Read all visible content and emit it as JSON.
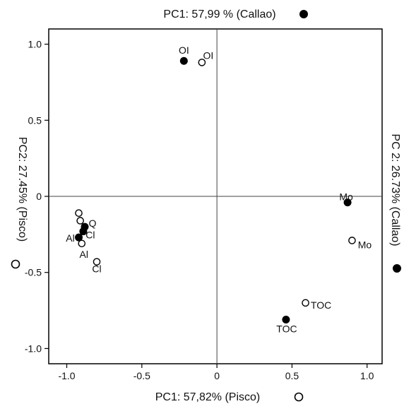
{
  "chart_data": {
    "type": "scatter",
    "title_top": "PC1: 57,99 % (Callao)",
    "xlabel_bottom": "PC1: 57,82% (Pisco)",
    "ylabel_left": "PC2: 27.45% (Pisco)",
    "ylabel_right": "PC 2: 26.73% (Callao)",
    "xlim": [
      -1.12,
      1.1
    ],
    "ylim": [
      -1.1,
      1.1
    ],
    "x_ticks": [
      -1.0,
      -0.5,
      0,
      0.5,
      1.0
    ],
    "x_tick_labels": [
      "-1.0",
      "-0.5",
      "0",
      "0.5",
      "1.0"
    ],
    "y_ticks": [
      1.0,
      0.5,
      0,
      -0.5,
      -1.0
    ],
    "y_tick_labels": [
      "1.0",
      "0.5",
      "0",
      "-0.5",
      "-1.0"
    ],
    "grid": false,
    "zero_lines": true,
    "series": [
      {
        "name": "Callao",
        "marker": "filled-circle",
        "points": [
          {
            "label": "OI",
            "x": -0.22,
            "y": 0.89
          },
          {
            "label": "Mo",
            "x": 0.87,
            "y": -0.04
          },
          {
            "label": "TOC",
            "x": 0.46,
            "y": -0.81
          },
          {
            "label": "Q",
            "x": -0.88,
            "y": -0.2
          },
          {
            "label": "Cl",
            "x": -0.89,
            "y": -0.23
          },
          {
            "label": "Al",
            "x": -0.92,
            "y": -0.27
          }
        ]
      },
      {
        "name": "Pisco",
        "marker": "open-circle",
        "points": [
          {
            "label": "OI",
            "x": -0.1,
            "y": 0.88
          },
          {
            "label": "Mo",
            "x": 0.9,
            "y": -0.29
          },
          {
            "label": "TOC",
            "x": 0.59,
            "y": -0.7
          },
          {
            "label": "Cl",
            "x": -0.8,
            "y": -0.43
          },
          {
            "label": "Al",
            "x": -0.9,
            "y": -0.31
          },
          {
            "label": "",
            "x": -0.92,
            "y": -0.11
          },
          {
            "label": "",
            "x": -0.91,
            "y": -0.16
          }
        ]
      }
    ]
  },
  "colors": {
    "marker_fill": "#000000",
    "marker_stroke": "#000000",
    "axis": "#000000",
    "background": "#ffffff"
  }
}
